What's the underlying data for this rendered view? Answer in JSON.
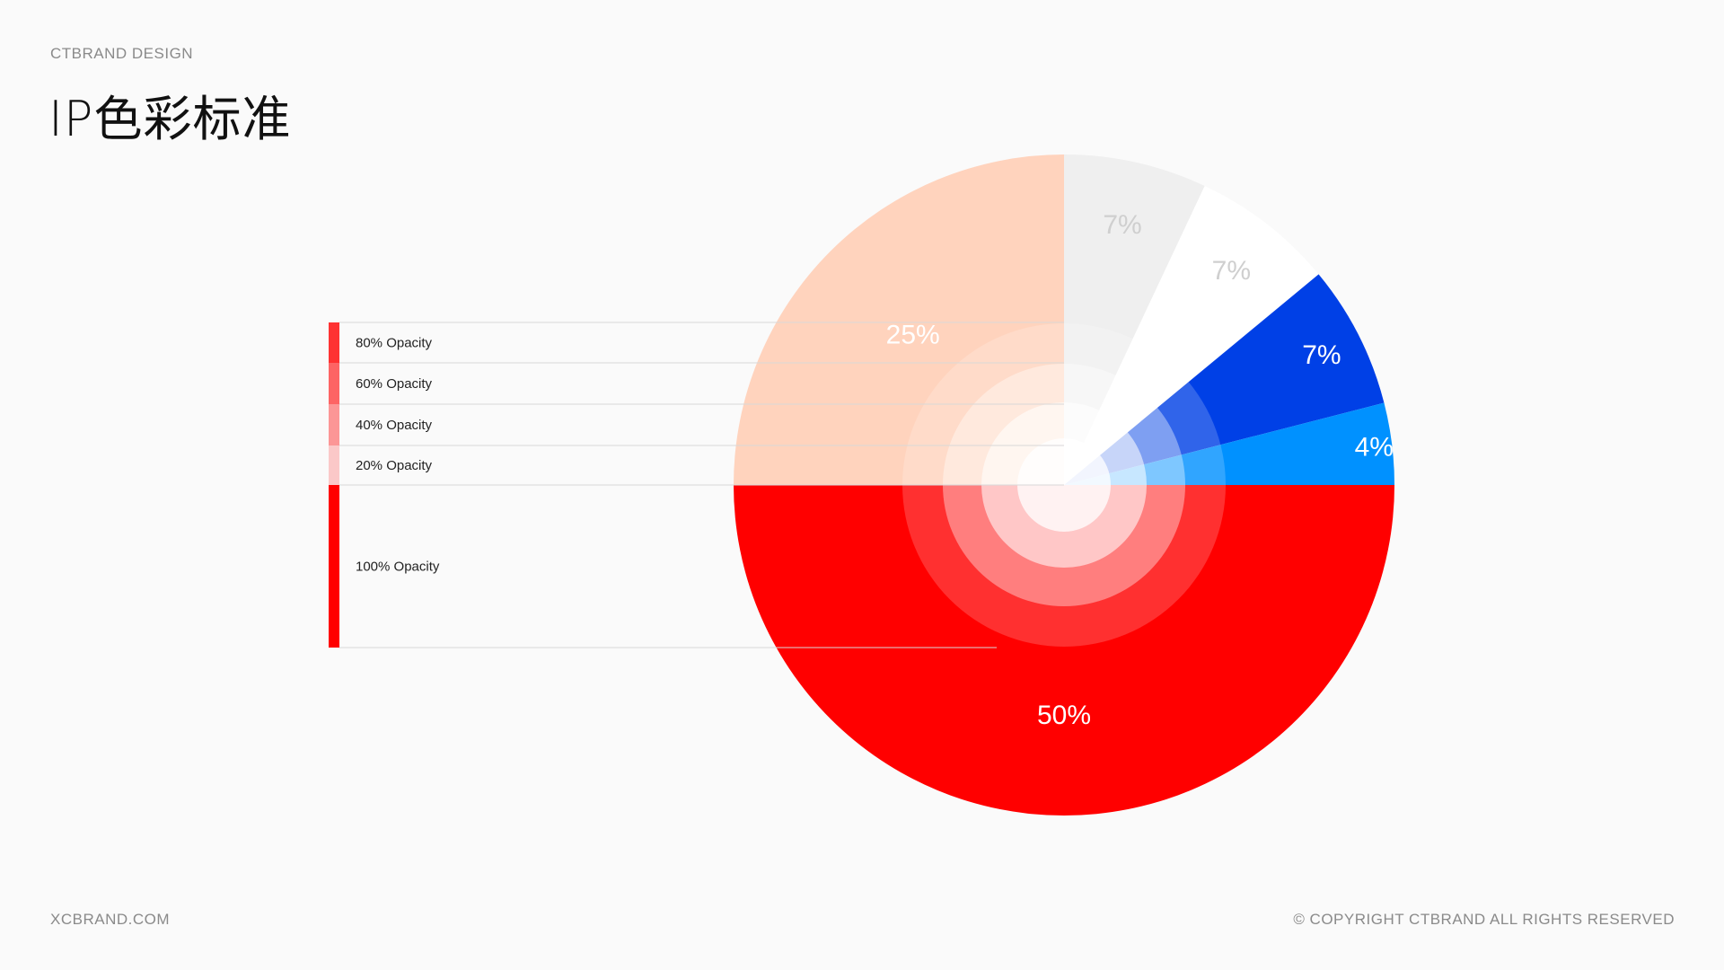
{
  "header": {
    "brand": "CTBRAND DESIGN",
    "title": "IP色彩标准"
  },
  "footer": {
    "website": "XCBRAND.COM",
    "copyright": "© COPYRIGHT CTBRAND ALL RIGHTS RESERVED"
  },
  "colors": {
    "background": "#fafafa",
    "primary_red": "#ff0000",
    "peach": "#ffd3bd",
    "light_gray": "#efefef",
    "white": "#ffffff",
    "deep_blue": "#0040e6",
    "bright_blue": "#0091ff",
    "legend_line": "#d8d8d8"
  },
  "legend": [
    {
      "label": "80% Opacity",
      "opacity": 0.8
    },
    {
      "label": "60% Opacity",
      "opacity": 0.6
    },
    {
      "label": "40% Opacity",
      "opacity": 0.4
    },
    {
      "label": "20% Opacity",
      "opacity": 0.2
    },
    {
      "label": "100% Opacity",
      "opacity": 1.0
    }
  ],
  "chart_data": {
    "type": "pie",
    "title": "",
    "slices": [
      {
        "label": "50%",
        "value": 50,
        "color": "#ff0000",
        "label_color": "#ffffff"
      },
      {
        "label": "25%",
        "value": 25,
        "color": "#ffd3bd",
        "label_color": "#ffffff"
      },
      {
        "label": "7%",
        "value": 7,
        "color": "#efefef",
        "label_color": "#cfcfcf"
      },
      {
        "label": "7%",
        "value": 7,
        "color": "#ffffff",
        "label_color": "#cfcfcf"
      },
      {
        "label": "7%",
        "value": 7,
        "color": "#0040e6",
        "label_color": "#ffffff"
      },
      {
        "label": "4%",
        "value": 4,
        "color": "#0091ff",
        "label_color": "#ffffff"
      }
    ],
    "opacity_rings": [
      0.8,
      0.6,
      0.4,
      0.2
    ]
  }
}
